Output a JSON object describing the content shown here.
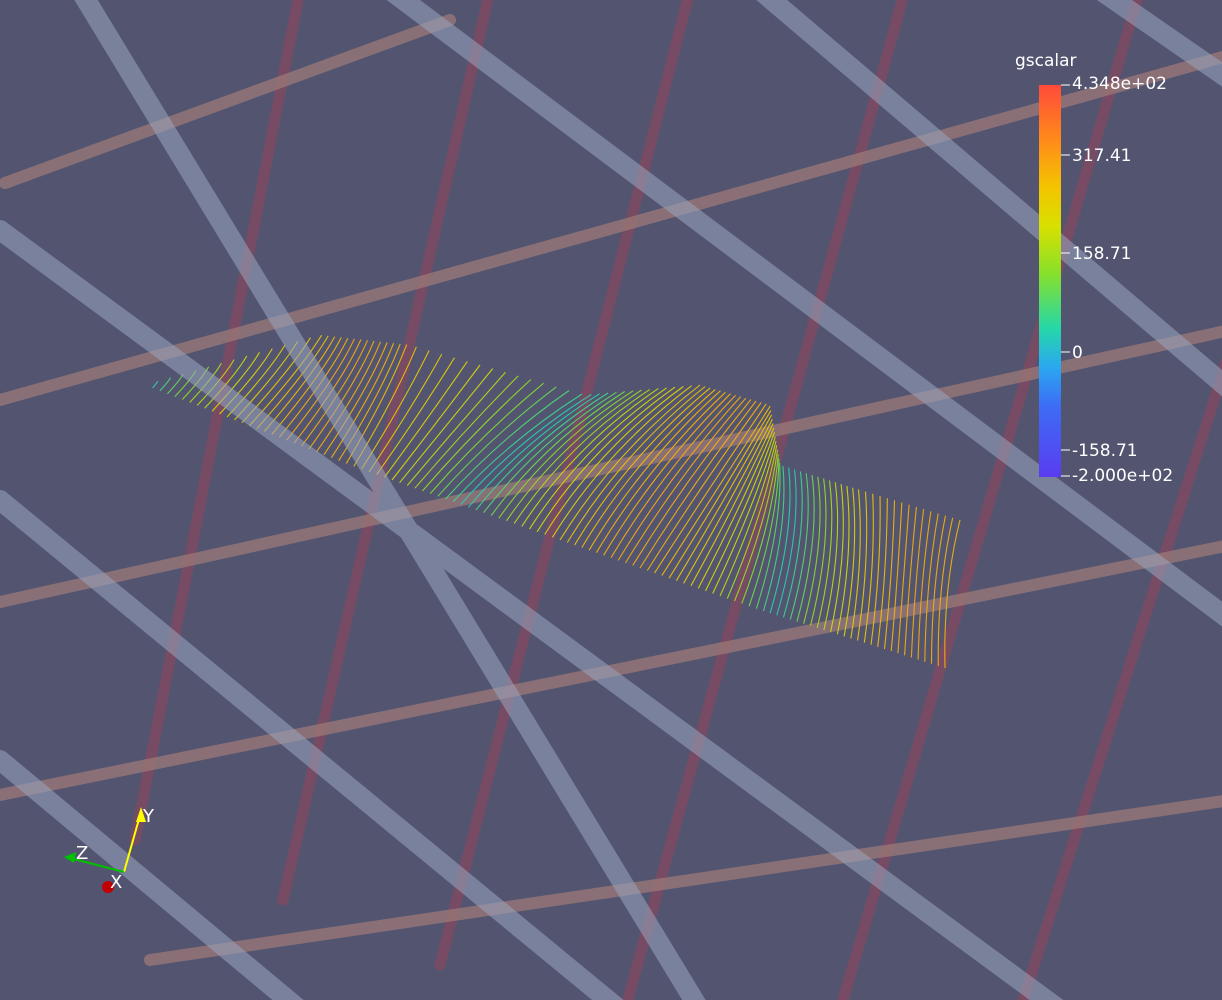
{
  "scene": {
    "background_color": "#535570",
    "colorbar": {
      "title": "gscalar",
      "labels": [
        "4.348e+02",
        "317.41",
        "158.71",
        "0",
        "-158.71",
        "-2.000e+02"
      ],
      "colors": [
        "#ff4a3a",
        "#ff8a1a",
        "#f4c400",
        "#d8e000",
        "#88e02a",
        "#25d8a8",
        "#2aa8f0",
        "#3d6cf5",
        "#5a3cf0"
      ]
    },
    "orientation_axes": {
      "x_label": "X",
      "y_label": "Y",
      "z_label": "Z",
      "x_color": "#c00000",
      "y_color": "#ffff00",
      "z_color": "#00c000"
    },
    "tube_colors": {
      "light_blue": "#9aa6c0",
      "mauve": "#7a4a62",
      "tan": "#9c7a78"
    }
  }
}
